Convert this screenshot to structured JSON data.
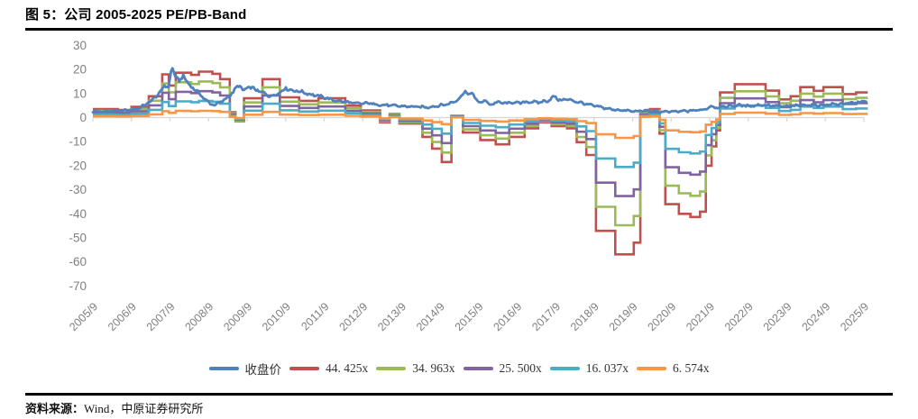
{
  "figure": {
    "title": "图 5：公司 2005-2025 PE/PB-Band",
    "source_label": "资料来源：",
    "source_value": "Wind，中原证券研究所"
  },
  "chart_data": {
    "type": "line",
    "title": "公司 2005-2025 PE/PB-Band",
    "ylim": [
      -70,
      30
    ],
    "yticks": [
      30,
      20,
      10,
      0,
      -10,
      -20,
      -30,
      -40,
      -50,
      -60,
      -70
    ],
    "x_tick_labels": [
      "2005/9",
      "2006/9",
      "2007/9",
      "2008/9",
      "2009/9",
      "2010/9",
      "2011/9",
      "2012/9",
      "2013/9",
      "2014/9",
      "2015/9",
      "2016/9",
      "2017/9",
      "2018/9",
      "2019/9",
      "2020/9",
      "2021/9",
      "2022/9",
      "2023/9",
      "2024/9",
      "2025/9"
    ],
    "x_range": [
      2005.75,
      2025.85
    ],
    "grid": false,
    "legend_position": "bottom",
    "axis_color": "#d6d6d6",
    "label_color": "#7f7f7f",
    "series": [
      {
        "name": "收盘价",
        "display": "收盘价",
        "kind": "price",
        "color": "#4F81BD"
      },
      {
        "name": "44.425x",
        "display": "44. 425x",
        "kind": "band",
        "multiple": 44.425,
        "color": "#C0504D"
      },
      {
        "name": "34.963x",
        "display": "34. 963x",
        "kind": "band",
        "multiple": 34.963,
        "color": "#9BBB59"
      },
      {
        "name": "25.500x",
        "display": "25. 500x",
        "kind": "band",
        "multiple": 25.5,
        "color": "#8064A2"
      },
      {
        "name": "16.037x",
        "display": "16. 037x",
        "kind": "band",
        "multiple": 16.037,
        "color": "#4BACC6"
      },
      {
        "name": "6.574x",
        "display": "6. 574x",
        "kind": "band",
        "multiple": 6.574,
        "color": "#F79646"
      }
    ],
    "bands_note": "band line value = multiple × eps step value (PE band); steps given as [decimal_year, eps]",
    "band_eps_steps": [
      [
        2005.75,
        0.079
      ],
      [
        2006.4,
        0.072
      ],
      [
        2006.75,
        0.101
      ],
      [
        2007.2,
        0.2
      ],
      [
        2007.55,
        0.405
      ],
      [
        2007.72,
        0.3
      ],
      [
        2007.9,
        0.42
      ],
      [
        2008.3,
        0.4
      ],
      [
        2008.5,
        0.43
      ],
      [
        2008.85,
        0.41
      ],
      [
        2009.05,
        0.36
      ],
      [
        2009.3,
        0.05
      ],
      [
        2009.45,
        -0.034
      ],
      [
        2009.67,
        0.18
      ],
      [
        2010.15,
        0.36
      ],
      [
        2010.6,
        0.19
      ],
      [
        2011.1,
        0.157
      ],
      [
        2011.6,
        0.18
      ],
      [
        2012.3,
        0.112
      ],
      [
        2012.7,
        0.067
      ],
      [
        2013.2,
        -0.045
      ],
      [
        2013.45,
        0.034
      ],
      [
        2013.7,
        -0.056
      ],
      [
        2014.3,
        -0.18
      ],
      [
        2014.55,
        -0.29
      ],
      [
        2014.8,
        -0.416
      ],
      [
        2015.05,
        0.018
      ],
      [
        2015.35,
        -0.14
      ],
      [
        2015.8,
        -0.21
      ],
      [
        2016.2,
        -0.25
      ],
      [
        2016.55,
        -0.18
      ],
      [
        2016.95,
        -0.1
      ],
      [
        2017.3,
        -0.045
      ],
      [
        2017.65,
        -0.08
      ],
      [
        2018.05,
        -0.1
      ],
      [
        2018.3,
        -0.23
      ],
      [
        2018.55,
        -0.35
      ],
      [
        2018.8,
        -1.06
      ],
      [
        2019.3,
        -1.28
      ],
      [
        2019.78,
        -1.17
      ],
      [
        2019.95,
        0.05
      ],
      [
        2020.2,
        0.08
      ],
      [
        2020.45,
        -0.15
      ],
      [
        2020.6,
        -0.81
      ],
      [
        2020.95,
        -0.9
      ],
      [
        2021.25,
        -0.93
      ],
      [
        2021.5,
        -0.88
      ],
      [
        2021.65,
        -0.45
      ],
      [
        2021.8,
        -0.27
      ],
      [
        2021.92,
        -0.12
      ],
      [
        2022.02,
        0.235
      ],
      [
        2022.4,
        0.313
      ],
      [
        2023.2,
        0.252
      ],
      [
        2023.55,
        0.17
      ],
      [
        2023.85,
        0.2
      ],
      [
        2024.1,
        0.285
      ],
      [
        2024.45,
        0.25
      ],
      [
        2024.7,
        0.285
      ],
      [
        2025.2,
        0.22
      ],
      [
        2025.55,
        0.235
      ]
    ],
    "price_points": [
      [
        2005.75,
        2.6
      ],
      [
        2005.95,
        2.4
      ],
      [
        2006.15,
        2.6
      ],
      [
        2006.4,
        2.8
      ],
      [
        2006.65,
        3.0
      ],
      [
        2006.9,
        3.7
      ],
      [
        2007.1,
        5.2
      ],
      [
        2007.3,
        7.5
      ],
      [
        2007.5,
        10.5
      ],
      [
        2007.62,
        13.8
      ],
      [
        2007.7,
        12.0
      ],
      [
        2007.8,
        20.8
      ],
      [
        2007.9,
        17.0
      ],
      [
        2008.0,
        15.0
      ],
      [
        2008.1,
        17.5
      ],
      [
        2008.25,
        13.5
      ],
      [
        2008.45,
        11.0
      ],
      [
        2008.6,
        8.5
      ],
      [
        2008.8,
        5.6
      ],
      [
        2008.95,
        5.4
      ],
      [
        2009.1,
        6.8
      ],
      [
        2009.3,
        9.0
      ],
      [
        2009.45,
        12.0
      ],
      [
        2009.55,
        13.5
      ],
      [
        2009.65,
        11.2
      ],
      [
        2009.85,
        12.8
      ],
      [
        2010.0,
        11.2
      ],
      [
        2010.2,
        10.2
      ],
      [
        2010.35,
        8.8
      ],
      [
        2010.55,
        10.0
      ],
      [
        2010.75,
        12.2
      ],
      [
        2010.95,
        11.2
      ],
      [
        2011.15,
        10.8
      ],
      [
        2011.4,
        9.6
      ],
      [
        2011.7,
        8.6
      ],
      [
        2012.0,
        7.2
      ],
      [
        2012.3,
        6.5
      ],
      [
        2012.6,
        5.8
      ],
      [
        2012.9,
        6.0
      ],
      [
        2013.2,
        5.3
      ],
      [
        2013.5,
        5.0
      ],
      [
        2013.8,
        4.7
      ],
      [
        2014.1,
        4.5
      ],
      [
        2014.45,
        4.3
      ],
      [
        2014.75,
        5.0
      ],
      [
        2015.0,
        5.8
      ],
      [
        2015.2,
        7.2
      ],
      [
        2015.42,
        11.2
      ],
      [
        2015.5,
        9.5
      ],
      [
        2015.62,
        10.0
      ],
      [
        2015.75,
        5.8
      ],
      [
        2015.9,
        7.2
      ],
      [
        2016.05,
        5.4
      ],
      [
        2016.25,
        6.4
      ],
      [
        2016.45,
        5.9
      ],
      [
        2016.65,
        6.3
      ],
      [
        2016.85,
        6.1
      ],
      [
        2017.05,
        6.6
      ],
      [
        2017.3,
        6.3
      ],
      [
        2017.55,
        7.0
      ],
      [
        2017.72,
        8.8
      ],
      [
        2017.85,
        7.2
      ],
      [
        2018.05,
        7.6
      ],
      [
        2018.3,
        6.6
      ],
      [
        2018.6,
        5.4
      ],
      [
        2018.9,
        4.4
      ],
      [
        2019.2,
        3.4
      ],
      [
        2019.5,
        3.0
      ],
      [
        2019.8,
        2.6
      ],
      [
        2020.1,
        2.9
      ],
      [
        2020.4,
        2.5
      ],
      [
        2020.7,
        2.4
      ],
      [
        2021.0,
        2.6
      ],
      [
        2021.3,
        2.9
      ],
      [
        2021.6,
        3.3
      ],
      [
        2021.78,
        4.7
      ],
      [
        2021.95,
        4.2
      ],
      [
        2022.2,
        4.7
      ],
      [
        2022.5,
        5.1
      ],
      [
        2022.8,
        4.8
      ],
      [
        2023.1,
        5.3
      ],
      [
        2023.4,
        4.9
      ],
      [
        2023.7,
        4.6
      ],
      [
        2024.0,
        4.9
      ],
      [
        2024.3,
        5.3
      ],
      [
        2024.6,
        5.1
      ],
      [
        2024.9,
        5.5
      ],
      [
        2025.2,
        5.7
      ],
      [
        2025.5,
        6.1
      ],
      [
        2025.82,
        6.9
      ]
    ]
  }
}
